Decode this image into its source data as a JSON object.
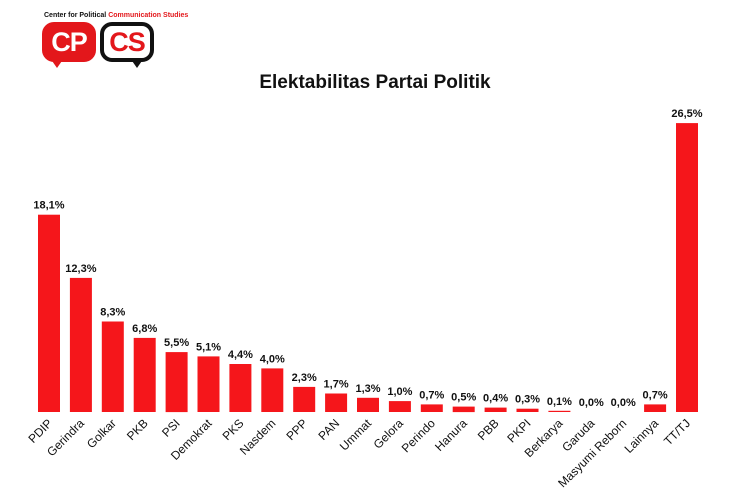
{
  "logo": {
    "caption_prefix": "Center for Political ",
    "caption_accent": "Communication Studies",
    "left_text": "CP",
    "right_text": "CS"
  },
  "colors": {
    "bar": "#f5161b",
    "text": "#111111"
  },
  "chart_data": {
    "type": "bar",
    "title": "Elektabilitas Partai Politik",
    "xlabel": "",
    "ylabel": "",
    "ylim": [
      0,
      30
    ],
    "grid": false,
    "legend": "none",
    "categories": [
      "PDIP",
      "Gerindra",
      "Golkar",
      "PKB",
      "PSI",
      "Demokrat",
      "PKS",
      "Nasdem",
      "PPP",
      "PAN",
      "Ummat",
      "Gelora",
      "Perindo",
      "Hanura",
      "PBB",
      "PKPI",
      "Berkarya",
      "Garuda",
      "Masyumi Reborn",
      "Lainnya",
      "TT/TJ"
    ],
    "values": [
      18.1,
      12.3,
      8.3,
      6.8,
      5.5,
      5.1,
      4.4,
      4.0,
      2.3,
      1.7,
      1.3,
      1.0,
      0.7,
      0.5,
      0.4,
      0.3,
      0.1,
      0.0,
      0.0,
      0.7,
      26.5
    ],
    "value_labels": [
      "18,1%",
      "12,3%",
      "8,3%",
      "6,8%",
      "5,5%",
      "5,1%",
      "4,4%",
      "4,0%",
      "2,3%",
      "1,7%",
      "1,3%",
      "1,0%",
      "0,7%",
      "0,5%",
      "0,4%",
      "0,3%",
      "0,1%",
      "0,0%",
      "0,0%",
      "0,7%",
      "26,5%"
    ]
  }
}
